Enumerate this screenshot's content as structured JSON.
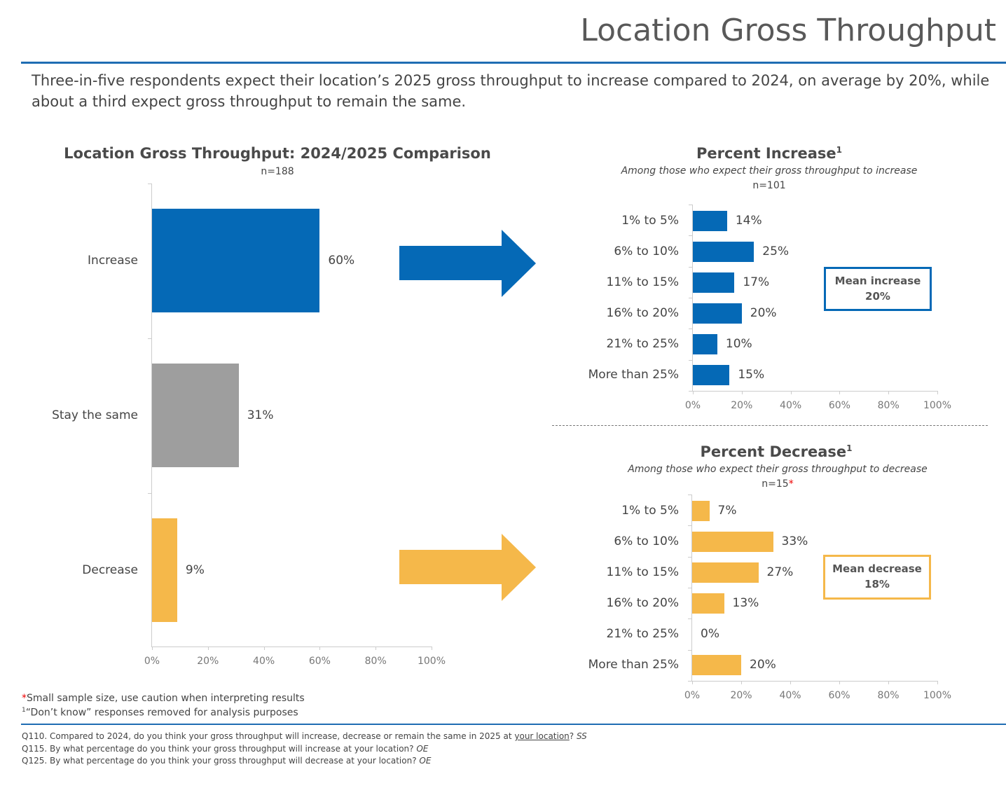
{
  "header": {
    "title": "Location Gross Throughput"
  },
  "subtitle": "Three-in-five respondents expect their location’s 2025 gross throughput to increase compared to 2024, on average by 20%, while about a third expect gross throughput to remain the same.",
  "colors": {
    "blue": "#0569b6",
    "gray": "#9e9e9e",
    "yellow": "#f5b84a",
    "rule": "#1f6db3"
  },
  "chart_data": [
    {
      "type": "bar",
      "orientation": "horizontal",
      "title": "Location Gross Throughput: 2024/2025 Comparison",
      "subtitle": "n=188",
      "categories": [
        "Increase",
        "Stay the same",
        "Decrease"
      ],
      "values": [
        60,
        31,
        9
      ],
      "value_labels": [
        "60%",
        "31%",
        "9%"
      ],
      "bar_colors": [
        "#0569b6",
        "#9e9e9e",
        "#f5b84a"
      ],
      "xlim": [
        0,
        100
      ],
      "ticks": [
        "0%",
        "20%",
        "40%",
        "60%",
        "80%",
        "100%"
      ],
      "grid": false
    },
    {
      "type": "bar",
      "orientation": "horizontal",
      "title": "Percent Increase",
      "title_sup": "1",
      "subtitle": "Among those who expect their gross throughput to increase",
      "n": "n=101",
      "categories": [
        "1% to 5%",
        "6% to 10%",
        "11% to 15%",
        "16% to 20%",
        "21% to 25%",
        "More than 25%"
      ],
      "values": [
        14,
        25,
        17,
        20,
        10,
        15
      ],
      "value_labels": [
        "14%",
        "25%",
        "17%",
        "20%",
        "10%",
        "15%"
      ],
      "color": "#0569b6",
      "xlim": [
        0,
        100
      ],
      "ticks": [
        "0%",
        "20%",
        "40%",
        "60%",
        "80%",
        "100%"
      ],
      "grid": false,
      "annotation": {
        "label": "Mean increase",
        "value": "20%"
      }
    },
    {
      "type": "bar",
      "orientation": "horizontal",
      "title": "Percent Decrease",
      "title_sup": "1",
      "subtitle": "Among those who expect their gross throughput to decrease",
      "n": "n=15",
      "n_marker": "*",
      "categories": [
        "1% to 5%",
        "6% to 10%",
        "11% to 15%",
        "16% to 20%",
        "21% to 25%",
        "More than 25%"
      ],
      "values": [
        7,
        33,
        27,
        13,
        0,
        20
      ],
      "value_labels": [
        "7%",
        "33%",
        "27%",
        "13%",
        "0%",
        "20%"
      ],
      "color": "#f5b84a",
      "xlim": [
        0,
        100
      ],
      "ticks": [
        "0%",
        "20%",
        "40%",
        "60%",
        "80%",
        "100%"
      ],
      "grid": false,
      "annotation": {
        "label": "Mean decrease",
        "value": "18%"
      }
    }
  ],
  "footnotes": {
    "marker": "*",
    "small_sample": "Small sample size, use caution when interpreting results",
    "sup": "1",
    "dont_know": "“Don’t know” responses removed for analysis purposes"
  },
  "questions": {
    "q110_pre": "Q110. Compared to 2024, do you think your gross throughput will increase, decrease or remain the same in 2025 at ",
    "q110_u": "your location",
    "q110_post": "? ",
    "q110_type": "SS",
    "q115": "Q115. By what percentage do you think your gross throughput will increase at your location? ",
    "q115_type": "OE",
    "q125": "Q125. By what percentage do you think your gross throughput will decrease at your location? ",
    "q125_type": "OE"
  }
}
